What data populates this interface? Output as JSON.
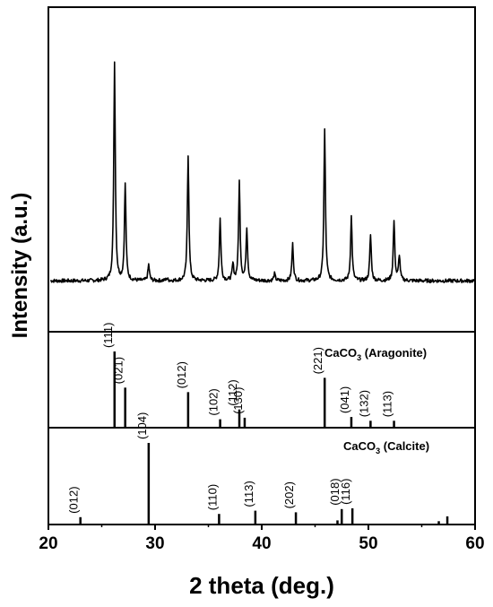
{
  "chart_data": {
    "type": "line",
    "xlabel": "2 theta (deg.)",
    "ylabel": "Intensity (a.u.)",
    "xlim": [
      20,
      60
    ],
    "x_ticks": [
      "20",
      "30",
      "40",
      "50",
      "60"
    ],
    "panels": [
      {
        "name": "measured-pattern",
        "type": "line",
        "baseline": 5,
        "peaks": [
          {
            "x": 26.2,
            "y": 100
          },
          {
            "x": 27.2,
            "y": 47
          },
          {
            "x": 29.4,
            "y": 12
          },
          {
            "x": 31.1,
            "y": 6
          },
          {
            "x": 33.1,
            "y": 60
          },
          {
            "x": 36.1,
            "y": 32
          },
          {
            "x": 37.3,
            "y": 12
          },
          {
            "x": 37.9,
            "y": 48
          },
          {
            "x": 38.6,
            "y": 28
          },
          {
            "x": 41.2,
            "y": 8
          },
          {
            "x": 42.9,
            "y": 21
          },
          {
            "x": 45.9,
            "y": 71
          },
          {
            "x": 48.4,
            "y": 33
          },
          {
            "x": 50.2,
            "y": 25
          },
          {
            "x": 52.4,
            "y": 31
          },
          {
            "x": 52.9,
            "y": 16
          }
        ]
      },
      {
        "name": "aragonite-reference",
        "type": "stick",
        "label_main": "CaCO",
        "label_sub": "3",
        "label_rest": " (Aragonite)",
        "sticks": [
          {
            "x": 26.2,
            "y": 100,
            "hkl": "(111)"
          },
          {
            "x": 27.2,
            "y": 52,
            "hkl": "(021)"
          },
          {
            "x": 33.1,
            "y": 46,
            "hkl": "(012)"
          },
          {
            "x": 36.1,
            "y": 10,
            "hkl": "(102)"
          },
          {
            "x": 37.9,
            "y": 23,
            "hkl": "(112)"
          },
          {
            "x": 38.4,
            "y": 12,
            "hkl": "(130)"
          },
          {
            "x": 45.9,
            "y": 65,
            "hkl": "(221)"
          },
          {
            "x": 48.4,
            "y": 13,
            "hkl": "(041)"
          },
          {
            "x": 50.2,
            "y": 8,
            "hkl": "(132)"
          },
          {
            "x": 52.4,
            "y": 8,
            "hkl": "(113)"
          }
        ]
      },
      {
        "name": "calcite-reference",
        "type": "stick",
        "label_main": "CaCO",
        "label_sub": "3",
        "label_rest": " (Calcite)",
        "sticks": [
          {
            "x": 23.0,
            "y": 8,
            "hkl": "(012)"
          },
          {
            "x": 29.4,
            "y": 100,
            "hkl": "(104)"
          },
          {
            "x": 36.0,
            "y": 12,
            "hkl": "(110)"
          },
          {
            "x": 39.4,
            "y": 16,
            "hkl": "(113)"
          },
          {
            "x": 43.2,
            "y": 14,
            "hkl": "(202)"
          },
          {
            "x": 47.1,
            "y": 4,
            "hkl": ""
          },
          {
            "x": 47.5,
            "y": 18,
            "hkl": "(018)"
          },
          {
            "x": 48.5,
            "y": 19,
            "hkl": "(116)"
          },
          {
            "x": 56.6,
            "y": 3,
            "hkl": ""
          },
          {
            "x": 57.4,
            "y": 9,
            "hkl": ""
          }
        ]
      }
    ]
  }
}
